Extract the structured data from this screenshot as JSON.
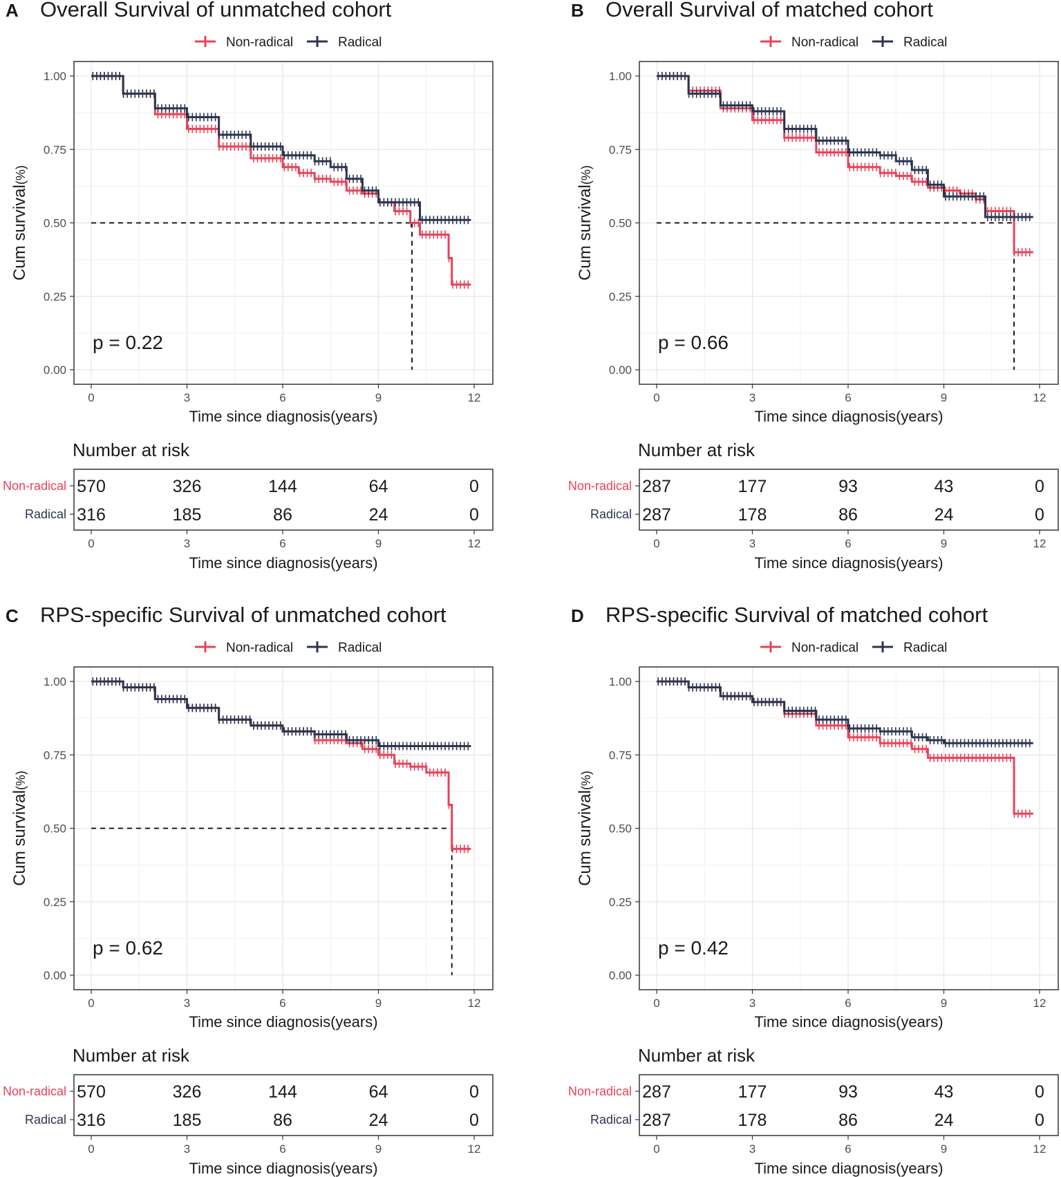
{
  "colors": {
    "non_radical": "#e8435a",
    "radical": "#2c3550",
    "grid": "#e6e6e6",
    "axis": "#333333",
    "text": "#1a1a1a",
    "tick": "#4d4d4d"
  },
  "common": {
    "ylabel_main": "Cum survival",
    "ylabel_suffix": "(%)",
    "xlabel": "Time since diagnosis(years)",
    "risk_title": "Number at risk",
    "legend": [
      "Non-radical",
      "Radical"
    ],
    "x_ticks": [
      "0",
      "3",
      "6",
      "9",
      "12"
    ],
    "y_ticks": [
      "0.00",
      "0.25",
      "0.50",
      "0.75",
      "1.00"
    ]
  },
  "chart_data": [
    {
      "panel": "A",
      "type": "line",
      "title": "Overall Survival of unmatched cohort",
      "xlabel": "Time since diagnosis(years)",
      "ylabel": "Cum survival(%)",
      "xlim": [
        0,
        12
      ],
      "ylim": [
        0,
        1
      ],
      "p_value": "p = 0.22",
      "series": [
        {
          "name": "Non-radical",
          "x": [
            0,
            1,
            2,
            3,
            4,
            5,
            6,
            6.5,
            7,
            7.5,
            8,
            8.5,
            9,
            9.5,
            10,
            10.3,
            11.0,
            11.2,
            11.3,
            11.9
          ],
          "y": [
            1.0,
            0.94,
            0.87,
            0.82,
            0.76,
            0.72,
            0.69,
            0.67,
            0.65,
            0.64,
            0.61,
            0.6,
            0.57,
            0.54,
            0.5,
            0.46,
            0.46,
            0.38,
            0.29,
            0.29
          ]
        },
        {
          "name": "Radical",
          "x": [
            0,
            1,
            2,
            3,
            4,
            5,
            6,
            7,
            7.5,
            8,
            8.5,
            9,
            10,
            10.3,
            11.9
          ],
          "y": [
            1.0,
            0.94,
            0.89,
            0.86,
            0.8,
            0.76,
            0.73,
            0.71,
            0.69,
            0.65,
            0.61,
            0.57,
            0.57,
            0.51,
            0.51
          ]
        }
      ],
      "median_line": {
        "y": 0.5,
        "x": 10.05
      },
      "risk_table": {
        "times": [
          0,
          3,
          6,
          9,
          12
        ],
        "rows": [
          {
            "label": "Non-radical",
            "values": [
              "570",
              "326",
              "144",
              "64",
              "0"
            ]
          },
          {
            "label": "Radical",
            "values": [
              "316",
              "185",
              "86",
              "24",
              "0"
            ]
          }
        ]
      }
    },
    {
      "panel": "B",
      "type": "line",
      "title": "Overall Survival of matched cohort",
      "xlabel": "Time since diagnosis(years)",
      "ylabel": "Cum survival(%)",
      "xlim": [
        0,
        12
      ],
      "ylim": [
        0,
        1
      ],
      "p_value": "p = 0.66",
      "series": [
        {
          "name": "Non-radical",
          "x": [
            0,
            1,
            2,
            3,
            4,
            5,
            6,
            7,
            7.5,
            8,
            8.5,
            9,
            9.5,
            10,
            10.3,
            11.0,
            11.2,
            11.8
          ],
          "y": [
            1.0,
            0.95,
            0.89,
            0.85,
            0.79,
            0.74,
            0.69,
            0.67,
            0.66,
            0.64,
            0.62,
            0.61,
            0.6,
            0.58,
            0.54,
            0.54,
            0.4,
            0.4
          ]
        },
        {
          "name": "Radical",
          "x": [
            0,
            1,
            2,
            3,
            4,
            5,
            6,
            7,
            7.5,
            8,
            8.5,
            9,
            10,
            10.3,
            11.8
          ],
          "y": [
            1.0,
            0.94,
            0.9,
            0.88,
            0.82,
            0.78,
            0.74,
            0.73,
            0.71,
            0.68,
            0.63,
            0.59,
            0.59,
            0.52,
            0.52
          ]
        }
      ],
      "median_line": {
        "y": 0.5,
        "x": 11.2
      },
      "risk_table": {
        "times": [
          0,
          3,
          6,
          9,
          12
        ],
        "rows": [
          {
            "label": "Non-radical",
            "values": [
              "287",
              "177",
              "93",
              "43",
              "0"
            ]
          },
          {
            "label": "Radical",
            "values": [
              "287",
              "178",
              "86",
              "24",
              "0"
            ]
          }
        ]
      }
    },
    {
      "panel": "C",
      "type": "line",
      "title": "RPS-specific Survival of unmatched cohort",
      "xlabel": "Time since diagnosis(years)",
      "ylabel": "Cum survival(%)",
      "xlim": [
        0,
        12
      ],
      "ylim": [
        0,
        1
      ],
      "p_value": "p = 0.62",
      "series": [
        {
          "name": "Non-radical",
          "x": [
            0,
            1,
            2,
            3,
            4,
            5,
            6,
            7,
            8,
            8.5,
            9,
            9.5,
            10,
            10.5,
            11.0,
            11.2,
            11.3,
            11.9
          ],
          "y": [
            1.0,
            0.98,
            0.94,
            0.91,
            0.87,
            0.85,
            0.83,
            0.8,
            0.79,
            0.77,
            0.75,
            0.72,
            0.71,
            0.69,
            0.69,
            0.58,
            0.43,
            0.43
          ]
        },
        {
          "name": "Radical",
          "x": [
            0,
            1,
            2,
            3,
            4,
            5,
            6,
            7,
            8,
            9,
            11.9
          ],
          "y": [
            1.0,
            0.98,
            0.94,
            0.91,
            0.87,
            0.85,
            0.83,
            0.82,
            0.8,
            0.78,
            0.78
          ]
        }
      ],
      "median_line": {
        "y": 0.5,
        "x": 11.3
      },
      "risk_table": {
        "times": [
          0,
          3,
          6,
          9,
          12
        ],
        "rows": [
          {
            "label": "Non-radical",
            "values": [
              "570",
              "326",
              "144",
              "64",
              "0"
            ]
          },
          {
            "label": "Radical",
            "values": [
              "316",
              "185",
              "86",
              "24",
              "0"
            ]
          }
        ]
      }
    },
    {
      "panel": "D",
      "type": "line",
      "title": "RPS-specific Survival of matched cohort",
      "xlabel": "Time since diagnosis(years)",
      "ylabel": "Cum survival(%)",
      "xlim": [
        0,
        12
      ],
      "ylim": [
        0,
        1
      ],
      "p_value": "p = 0.42",
      "series": [
        {
          "name": "Non-radical",
          "x": [
            0,
            1,
            2,
            3,
            4,
            5,
            6,
            7,
            8,
            8.5,
            9,
            10,
            11.0,
            11.2,
            11.8
          ],
          "y": [
            1.0,
            0.98,
            0.95,
            0.93,
            0.89,
            0.85,
            0.81,
            0.79,
            0.77,
            0.74,
            0.74,
            0.74,
            0.74,
            0.55,
            0.55
          ]
        },
        {
          "name": "Radical",
          "x": [
            0,
            1,
            2,
            3,
            4,
            5,
            6,
            7,
            8,
            8.5,
            9,
            11.8
          ],
          "y": [
            1.0,
            0.98,
            0.95,
            0.93,
            0.9,
            0.87,
            0.84,
            0.83,
            0.81,
            0.8,
            0.79,
            0.79
          ]
        }
      ],
      "median_line": null,
      "risk_table": {
        "times": [
          0,
          3,
          6,
          9,
          12
        ],
        "rows": [
          {
            "label": "Non-radical",
            "values": [
              "287",
              "177",
              "93",
              "43",
              "0"
            ]
          },
          {
            "label": "Radical",
            "values": [
              "287",
              "178",
              "86",
              "24",
              "0"
            ]
          }
        ]
      }
    }
  ]
}
